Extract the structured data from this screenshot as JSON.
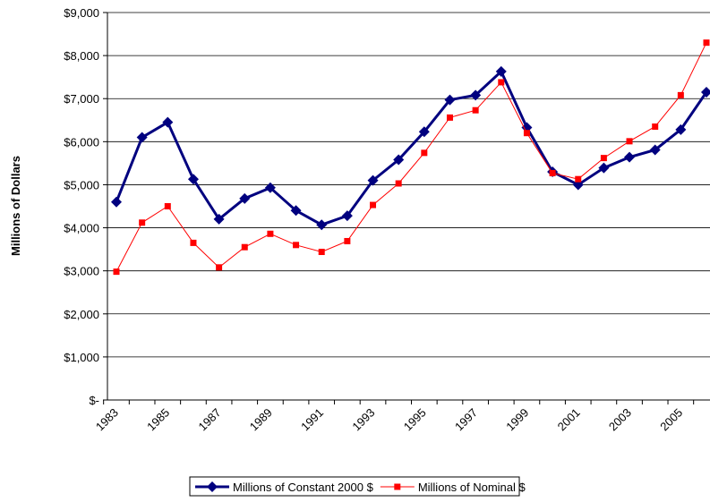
{
  "chart_data": {
    "type": "line",
    "y_label": "Millions of Dollars",
    "categories": [
      "1983",
      null,
      "1985",
      null,
      "1987",
      null,
      "1989",
      null,
      "1991",
      null,
      "1993",
      null,
      "1995",
      null,
      "1997",
      null,
      "1999",
      null,
      "2001",
      null,
      "2003",
      null,
      "2005",
      null
    ],
    "series": [
      {
        "name": "Millions of Constant 2000 $",
        "color": "#00007f",
        "values": [
          4600,
          6100,
          6450,
          5130,
          4200,
          4680,
          4930,
          4400,
          4070,
          4280,
          5100,
          5580,
          6230,
          6970,
          7080,
          7630,
          6330,
          5300,
          5000,
          5390,
          5640,
          5810,
          6280,
          7150
        ]
      },
      {
        "name": "Millions of Nominal $",
        "color": "#ff0000",
        "values": [
          2980,
          4120,
          4500,
          3650,
          3080,
          3550,
          3860,
          3600,
          3440,
          3690,
          4530,
          5030,
          5740,
          6560,
          6730,
          7380,
          6200,
          5270,
          5130,
          5620,
          6010,
          6350,
          7080,
          8300
        ]
      }
    ],
    "ylim": [
      0,
      9000
    ],
    "yticks": [
      {
        "value": 0,
        "label": "$-"
      },
      {
        "value": 1000,
        "label": "$1,000"
      },
      {
        "value": 2000,
        "label": "$2,000"
      },
      {
        "value": 3000,
        "label": "$3,000"
      },
      {
        "value": 4000,
        "label": "$4,000"
      },
      {
        "value": 5000,
        "label": "$5,000"
      },
      {
        "value": 6000,
        "label": "$6,000"
      },
      {
        "value": 7000,
        "label": "$7,000"
      },
      {
        "value": 8000,
        "label": "$8,000"
      },
      {
        "value": 9000,
        "label": "$9,000"
      }
    ],
    "grid": true
  }
}
